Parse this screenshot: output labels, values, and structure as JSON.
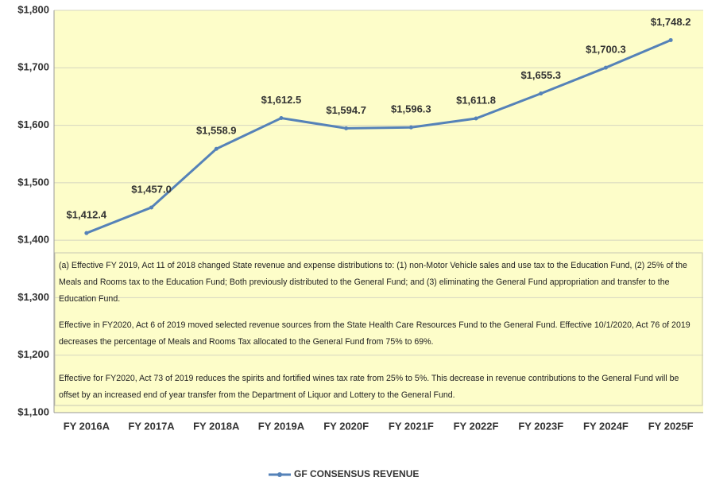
{
  "chart_data": {
    "type": "line",
    "categories": [
      "FY 2016A",
      "FY 2017A",
      "FY 2018A",
      "FY 2019A",
      "FY 2020F",
      "FY 2021F",
      "FY 2022F",
      "FY 2023F",
      "FY 2024F",
      "FY 2025F"
    ],
    "series": [
      {
        "name": "GF CONSENSUS REVENUE",
        "color": "#5582b8",
        "values": [
          1412.4,
          1457.0,
          1558.9,
          1612.5,
          1594.7,
          1596.3,
          1611.8,
          1655.3,
          1700.3,
          1748.2
        ],
        "value_labels": [
          "$1,412.4",
          "$1,457.0",
          "$1,558.9",
          "$1,612.5",
          "$1,594.7",
          "$1,596.3",
          "$1,611.8",
          "$1,655.3",
          "$1,700.3",
          "$1,748.2"
        ]
      }
    ],
    "ylim": [
      1100,
      1800
    ],
    "yticks": [
      {
        "value": 1100,
        "label": "$1,100"
      },
      {
        "value": 1200,
        "label": "$1,200"
      },
      {
        "value": 1300,
        "label": "$1,300"
      },
      {
        "value": 1400,
        "label": "$1,400"
      },
      {
        "value": 1500,
        "label": "$1,500"
      },
      {
        "value": 1600,
        "label": "$1,600"
      },
      {
        "value": 1700,
        "label": "$1,700"
      },
      {
        "value": 1800,
        "label": "$1,800"
      }
    ],
    "grid": true,
    "legend": "bottom",
    "annotations": [
      "(a) Effective FY 2019, Act 11 of 2018 changed State revenue and expense distributions to: (1) non-Motor Vehicle sales and use tax to the Education Fund, (2) 25% of the Meals and Rooms tax to the Education Fund; Both previously distributed to the General Fund; and (3) eliminating the General Fund appropriation and transfer to the Education Fund.",
      "Effective in FY2020, Act 6 of 2019 moved selected revenue sources from the State Health Care Resources Fund to the General Fund. Effective 10/1/2020, Act 76 of 2019 decreases the percentage of Meals and Rooms Tax allocated to the General Fund from 75% to 69%.",
      "Effective for FY2020, Act 73 of 2019 reduces the spirits and fortified wines tax rate from 25% to 5%. This decrease in revenue contributions to the General Fund will be offset by an increased end of year transfer from the Department of Liquor and Lottery to the General Fund."
    ]
  }
}
